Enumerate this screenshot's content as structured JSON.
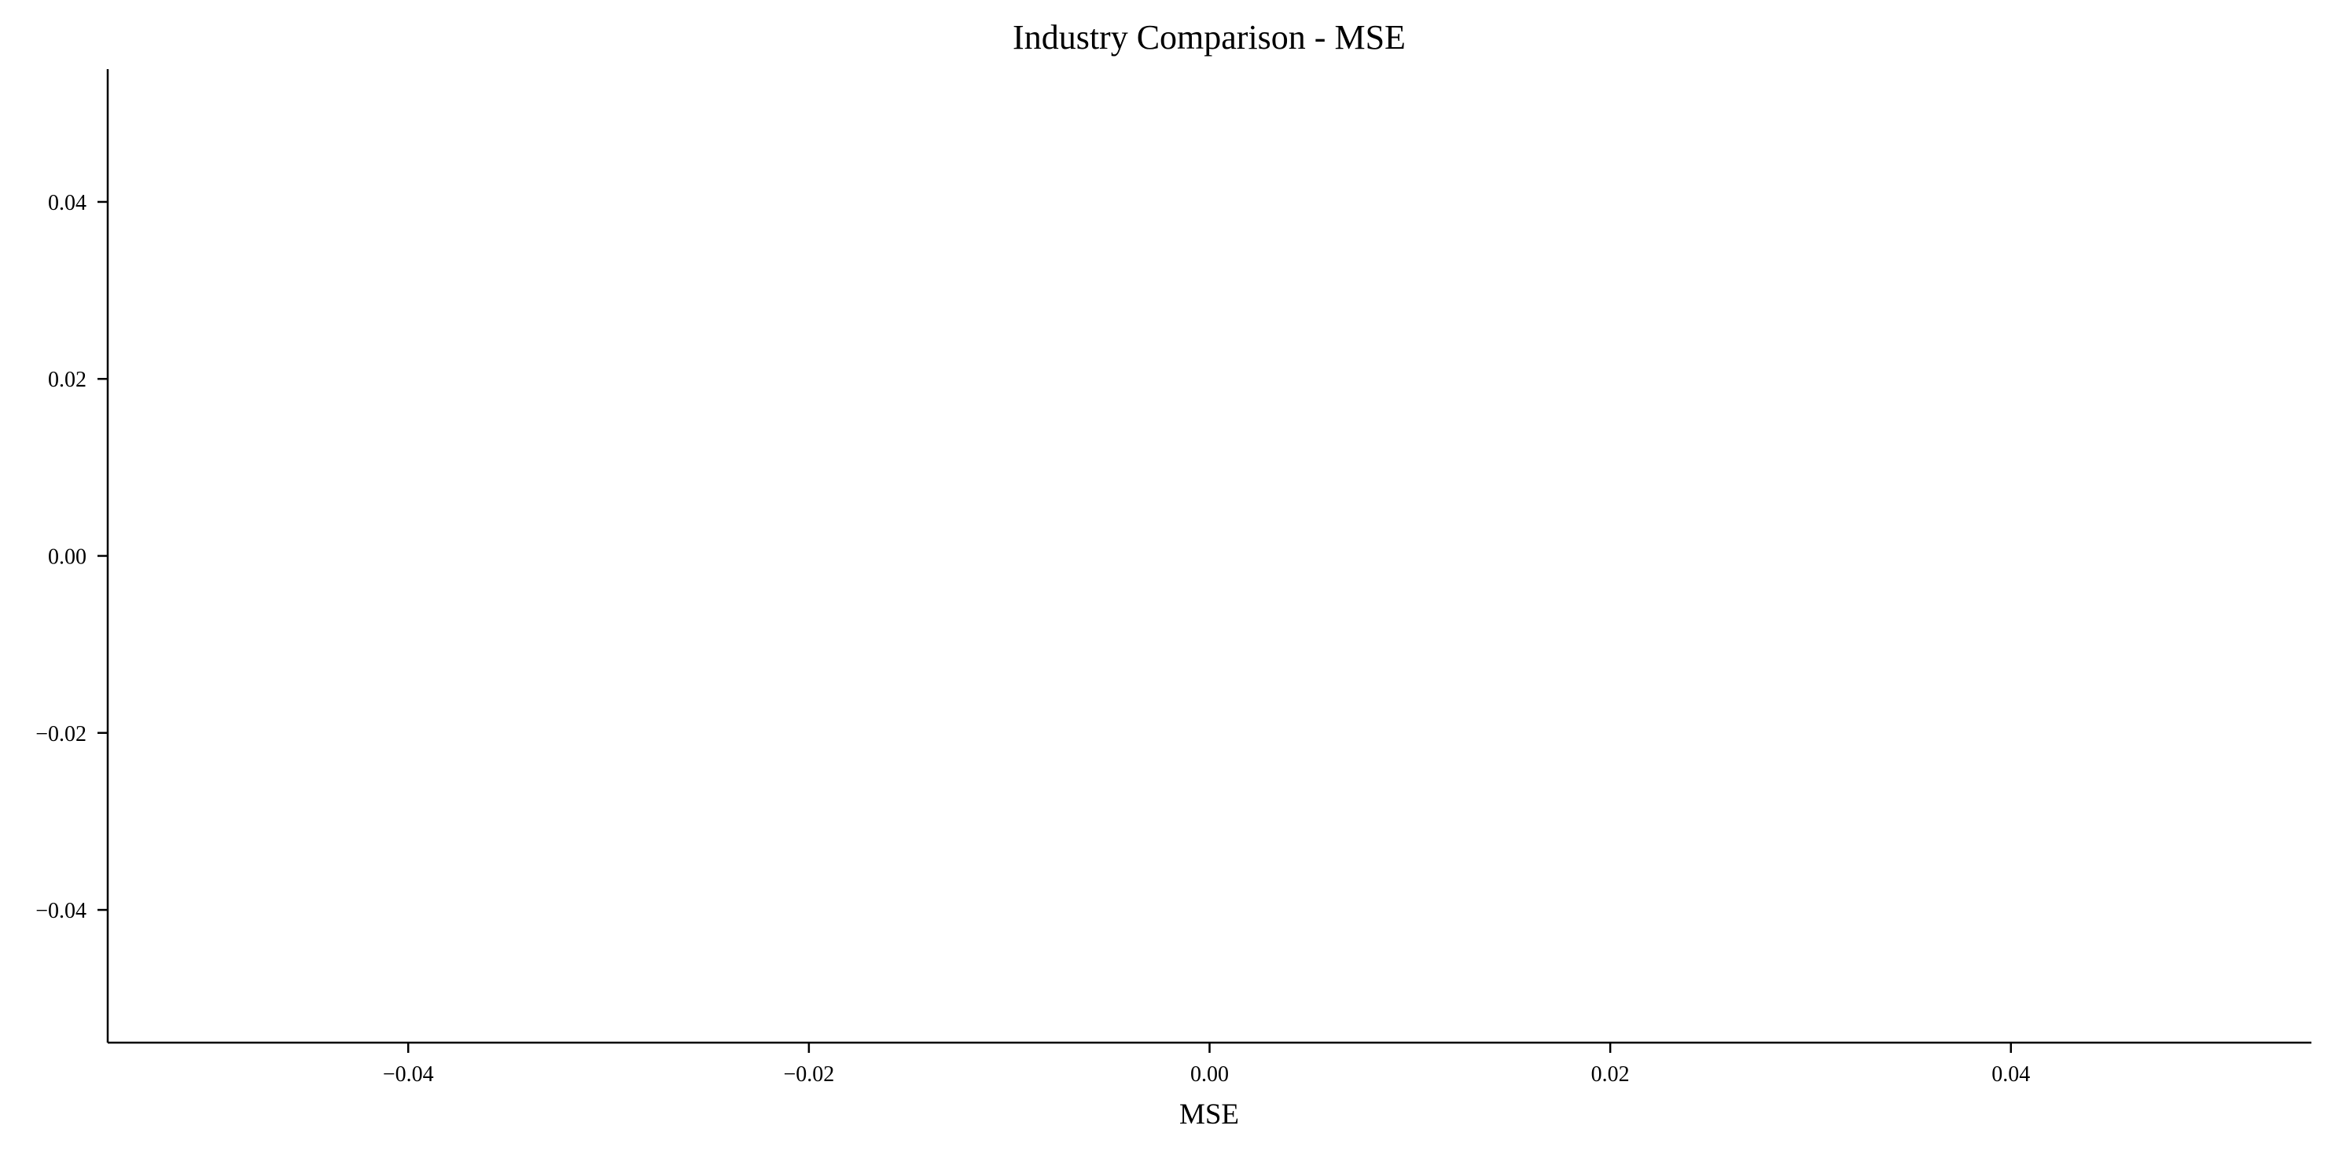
{
  "chart_data": {
    "type": "bar",
    "title": "Industry Comparison - MSE",
    "xlabel": "MSE",
    "ylabel": "",
    "categories": [],
    "values": [],
    "xlim": [
      -0.055,
      0.055
    ],
    "ylim": [
      -0.055,
      0.055
    ],
    "xticks": [
      -0.04,
      -0.02,
      0.0,
      0.02,
      0.04
    ],
    "xtick_labels": [
      "−0.04",
      "−0.02",
      "0.00",
      "0.02",
      "0.04"
    ],
    "yticks": [
      0.04,
      0.02,
      0.0,
      -0.02,
      -0.04
    ],
    "ytick_labels": [
      "0.04",
      "0.02",
      "0.00",
      "−0.02",
      "−0.04"
    ],
    "grid": false,
    "legend": "none"
  },
  "colors": {
    "axis": "#000000",
    "background": "#ffffff"
  }
}
